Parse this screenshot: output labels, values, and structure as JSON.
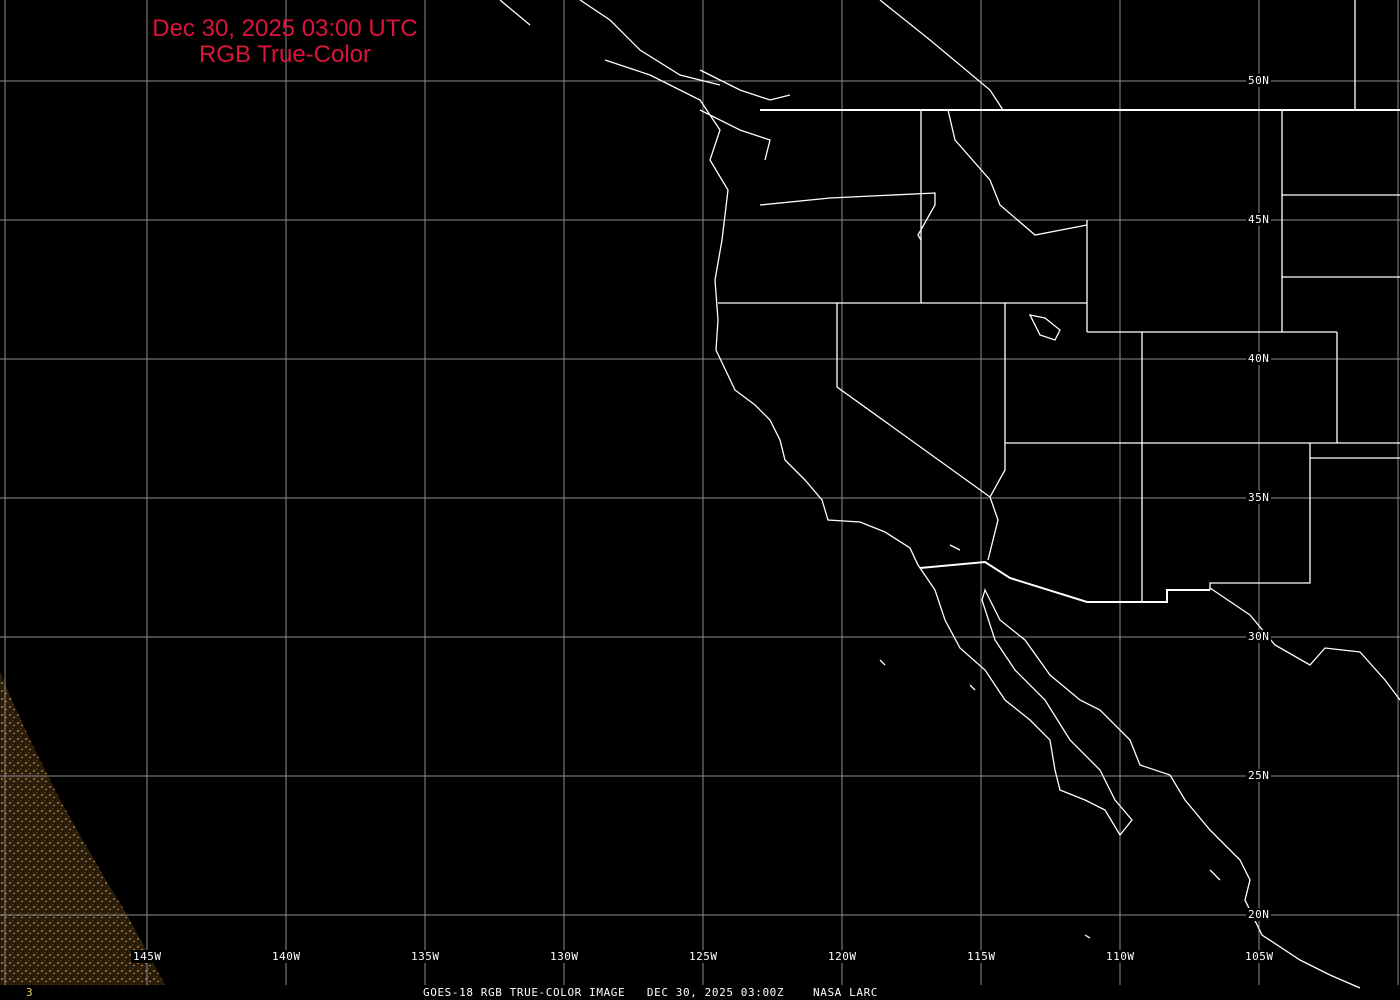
{
  "title": {
    "line1": "Dec 30, 2025 03:00 UTC",
    "line2": "RGB True-Color"
  },
  "lat_labels": [
    "50N",
    "45N",
    "40N",
    "35N",
    "30N",
    "25N",
    "20N"
  ],
  "lon_labels": [
    "145W",
    "140W",
    "135W",
    "130W",
    "125W",
    "120W",
    "115W",
    "110W",
    "105W"
  ],
  "footer": {
    "frame": "3",
    "caption": "GOES-18 RGB TRUE-COLOR IMAGE   DEC 30, 2025 03:00Z    NASA LARC"
  },
  "colors": {
    "title": "#dc143c",
    "grid": "#8c8c8c",
    "borders": "#ffffff",
    "frame_number": "#e8d060",
    "imagery": "#5a4020"
  }
}
